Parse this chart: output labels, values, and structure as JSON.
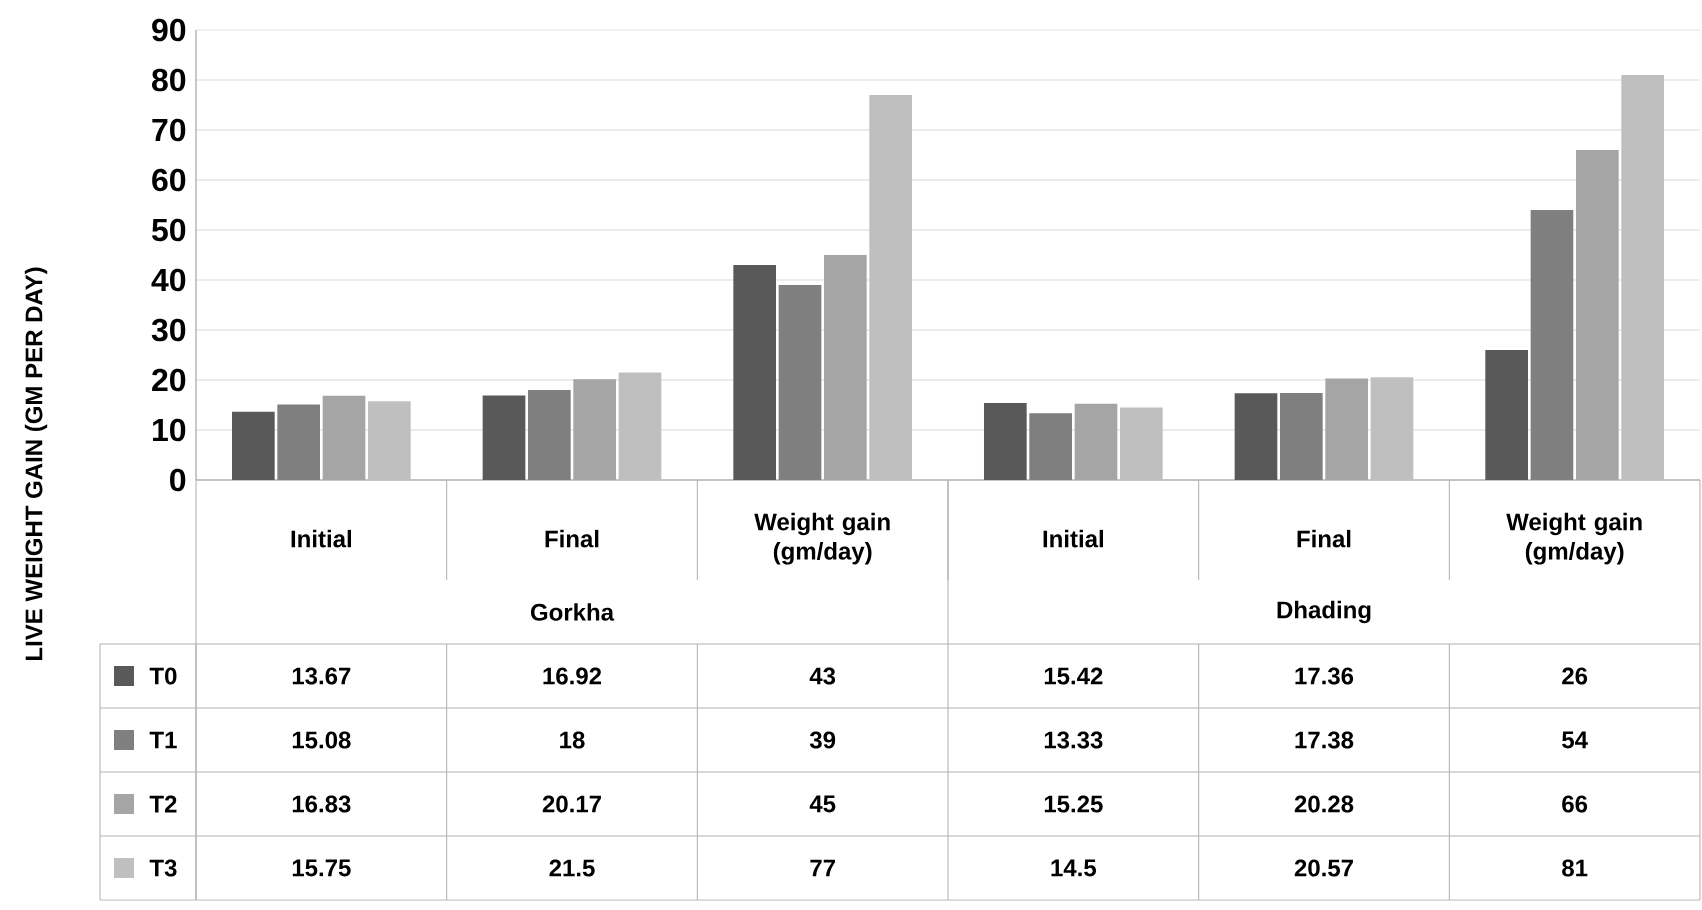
{
  "chart_data": {
    "type": "bar",
    "ylabel": "LIVE WEIGHT GAIN (GM PER DAY)",
    "categories": [
      "Initial",
      "Final",
      "Weight gain (gm/day)",
      "Initial",
      "Final",
      "Weight gain (gm/day)"
    ],
    "annotations": [
      "Gorkha",
      "Dhading"
    ],
    "series": [
      {
        "name": "T0",
        "color": "#595959",
        "values": [
          13.67,
          16.92,
          43,
          15.42,
          17.36,
          26
        ]
      },
      {
        "name": "T1",
        "color": "#7f7f7f",
        "values": [
          15.08,
          18,
          39,
          13.33,
          17.38,
          54
        ]
      },
      {
        "name": "T2",
        "color": "#a5a5a5",
        "values": [
          16.83,
          20.17,
          45,
          15.25,
          20.28,
          66
        ]
      },
      {
        "name": "T3",
        "color": "#bfbfbf",
        "values": [
          15.75,
          21.5,
          77,
          14.5,
          20.57,
          81
        ]
      }
    ],
    "ylim": [
      0,
      90
    ],
    "yticks": [
      0,
      10,
      20,
      30,
      40,
      50,
      60,
      70,
      80,
      90
    ],
    "grid": "y",
    "data_labels": true,
    "legend": "bottom"
  }
}
